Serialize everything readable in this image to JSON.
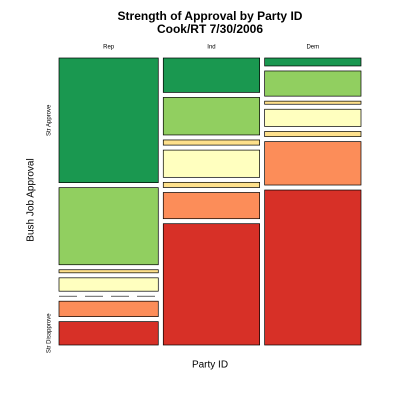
{
  "chart_data": {
    "type": "mosaic",
    "title": "Strength of Approval by Party ID",
    "subtitle": "Cook/RT 7/30/2006",
    "x_label": "Party ID",
    "y_label": "Bush Job Approval",
    "categories": [
      "Rep",
      "Ind",
      "Dem"
    ],
    "column_shares": [
      34,
      33,
      33
    ],
    "series": [
      {
        "name": "Str Approve",
        "color": "#1a9850",
        "values": [
          48.5,
          13.4,
          3.1
        ]
      },
      {
        "name": null,
        "color": "#91cf60",
        "values": [
          30,
          14.6,
          9.8
        ]
      },
      {
        "name": null,
        "color": "#fee08b",
        "values": [
          1.2,
          2,
          1.2
        ]
      },
      {
        "name": null,
        "color": "#ffffbf",
        "values": [
          5.2,
          10.6,
          6.7
        ]
      },
      {
        "name": null,
        "color": "#fee08b",
        "values": [
          0,
          2,
          2
        ]
      },
      {
        "name": null,
        "color": "#fc8d59",
        "values": [
          6,
          10.2,
          16.9
        ]
      },
      {
        "name": "Str Disapprove",
        "color": "#d73027",
        "values": [
          9.1,
          47.2,
          60.3
        ]
      }
    ]
  }
}
